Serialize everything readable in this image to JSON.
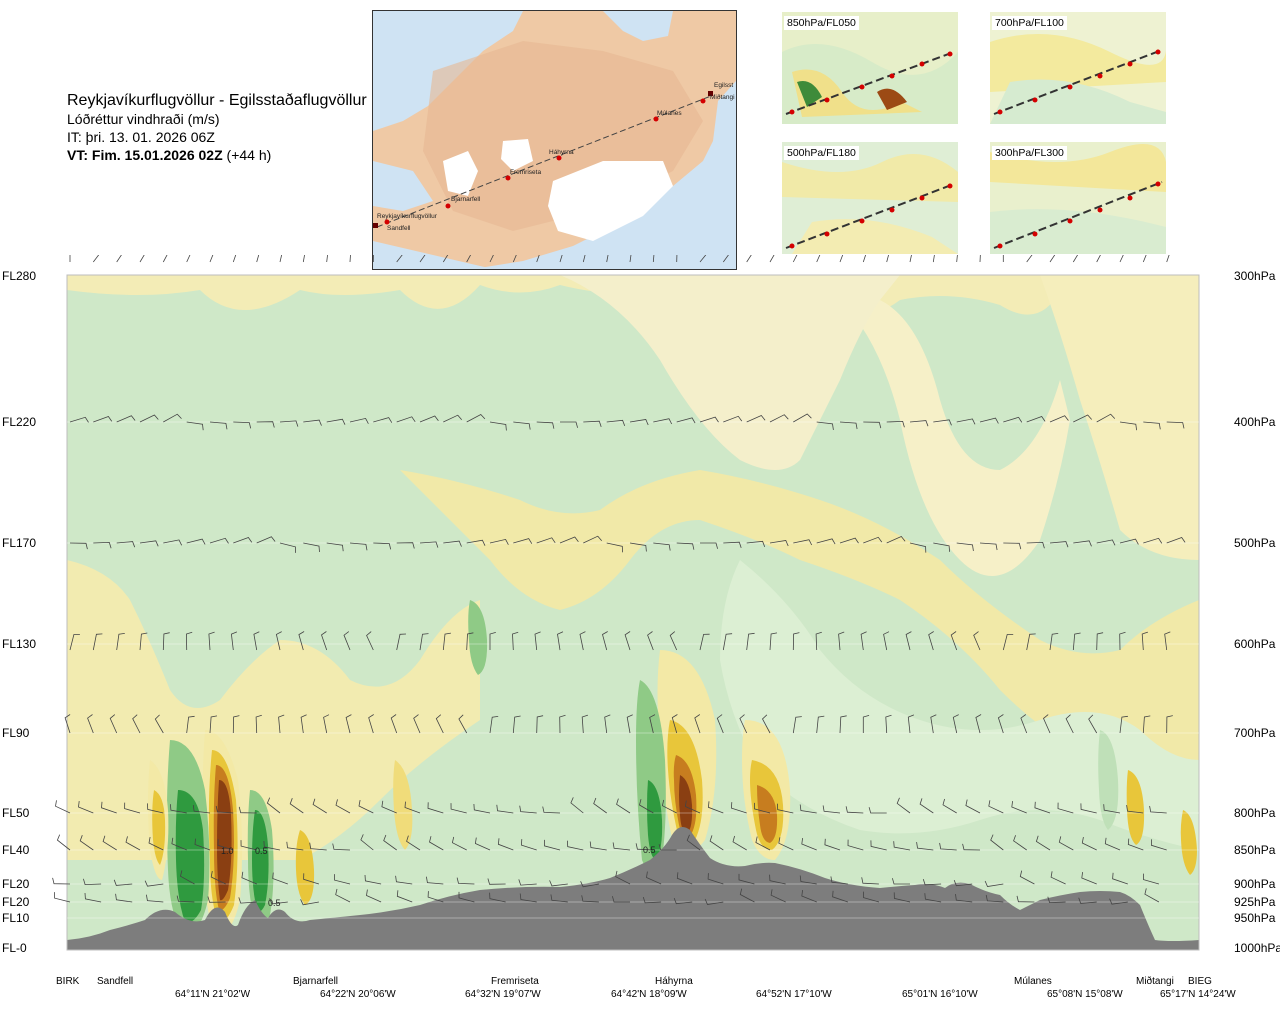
{
  "header": {
    "route": "Reykjavíkurflugvöllur - Egilsstaðaflugvöllur",
    "product": "Lóðréttur vindhraði (m/s)",
    "issue_time": "IT: þri. 13. 01. 2026 06Z",
    "valid_prefix": "VT: Fim. 15.01.2026 02Z",
    "valid_suffix": "(+44 h)"
  },
  "route_map": {
    "points": [
      "Reykjavíkurflugvöllur",
      "Sandfell",
      "Bjarnarfell",
      "Fremriseta",
      "Háhyrna",
      "Múlanes",
      "Egilsst",
      "Miðtangi"
    ]
  },
  "mini_maps": [
    {
      "label": "850hPa/FL050"
    },
    {
      "label": "700hPa/FL100"
    },
    {
      "label": "500hPa/FL180"
    },
    {
      "label": "300hPa/FL300"
    }
  ],
  "chart_data": {
    "type": "heatmap",
    "title": "Lóðréttur vindhraði (m/s)",
    "xlabel": "",
    "ylabel": "",
    "y_levels": [
      {
        "fl": "FL280",
        "hpa": "300hPa"
      },
      {
        "fl": "FL220",
        "hpa": "400hPa"
      },
      {
        "fl": "FL170",
        "hpa": "500hPa"
      },
      {
        "fl": "FL130",
        "hpa": "600hPa"
      },
      {
        "fl": "FL90",
        "hpa": "700hPa"
      },
      {
        "fl": "FL50",
        "hpa": "800hPa"
      },
      {
        "fl": "FL40",
        "hpa": "850hPa"
      },
      {
        "fl": "FL20",
        "hpa": "900hPa"
      },
      {
        "fl": "FL20",
        "hpa": "925hPa"
      },
      {
        "fl": "FL10",
        "hpa": "950hPa"
      },
      {
        "fl": "FL-0",
        "hpa": "1000hPa"
      }
    ],
    "stations": [
      "BIRK",
      "Sandfell",
      "Bjarnarfell",
      "Fremriseta",
      "Háhyrna",
      "Múlanes",
      "Miðtangi",
      "BIEG"
    ],
    "coordinates": [
      "64°11'N 21°02'W",
      "64°22'N 20°06'W",
      "64°32'N 19°07'W",
      "64°42'N 18°09'W",
      "64°52'N 17°10'W",
      "65°01'N 16°10'W",
      "65°08'N 15°08'W",
      "65°17'N 14°24'W"
    ],
    "contour_labels": [
      "1.0",
      "0.5",
      "0.5",
      "0.5"
    ],
    "colors": {
      "strong_down": "#c9e7c8",
      "weak_down": "#dcefd3",
      "neutral": "#f5f2d9",
      "weak_up": "#f3e9a6",
      "mod_up": "#e8c63a",
      "strong_up": "#c77d1f",
      "extreme_up": "#8a3f12",
      "mod_down": "#8fca86",
      "strong_down2": "#2f9a3f",
      "terrain": "#7d7d7d"
    }
  }
}
